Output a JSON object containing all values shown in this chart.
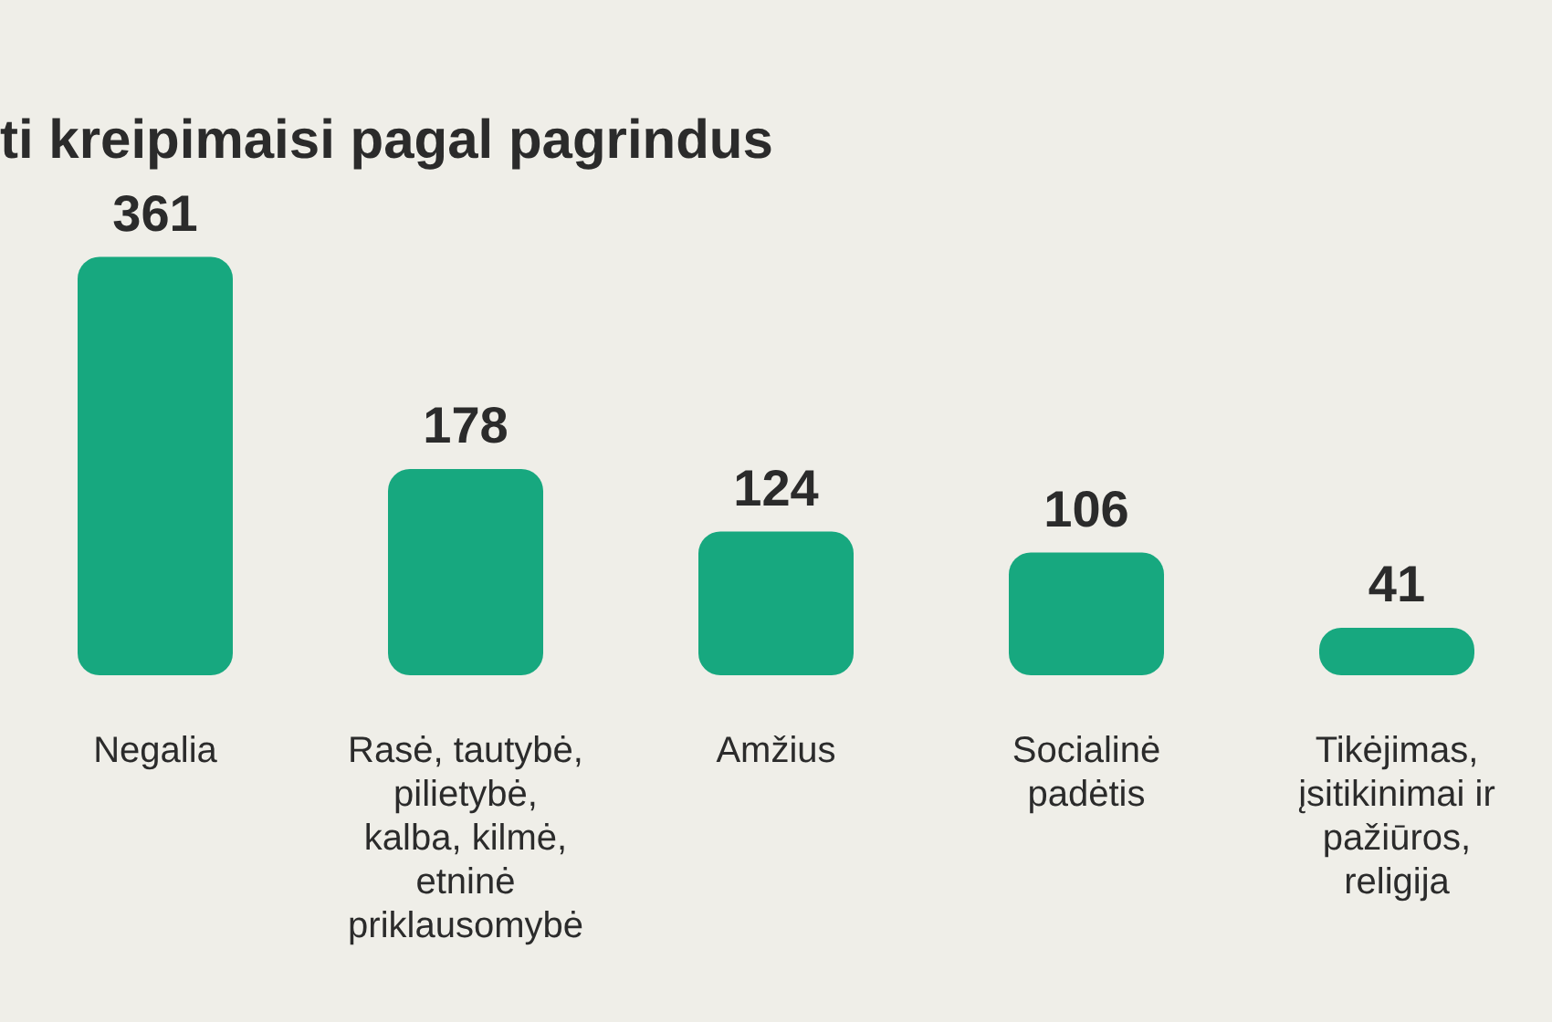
{
  "chart_data": {
    "type": "bar",
    "title": "ti kreipimaisi pagal pagrindus",
    "categories": [
      "Negalia",
      "Rasė, tautybė, pilietybė, kalba, kilmė, etninė priklausomybė",
      "Amžius",
      "Socialinė padėtis",
      "Tikėjimas, įsitikinimai ir pažiūros, religija"
    ],
    "values": [
      361,
      178,
      124,
      106,
      41
    ],
    "color": "#17a87f",
    "data_labels": true,
    "grid": false,
    "legend": false
  }
}
